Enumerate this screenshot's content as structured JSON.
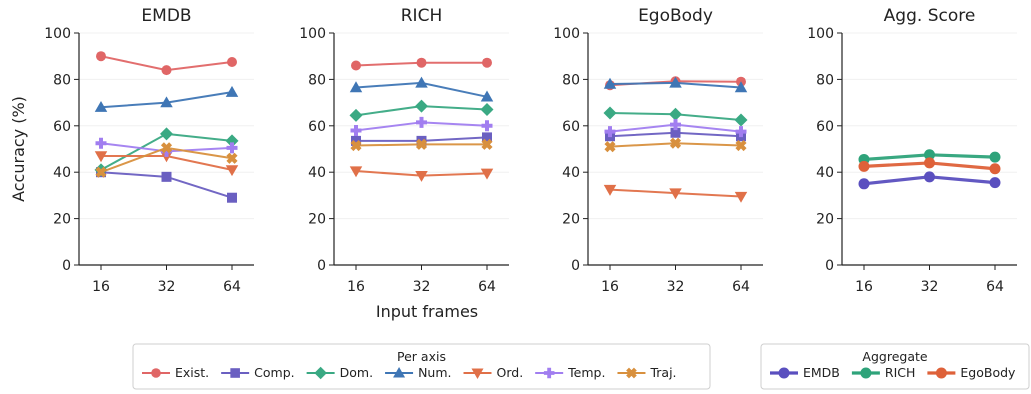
{
  "figure": {
    "ylabel": "Accuracy (%)",
    "xlabel": "Input frames"
  },
  "chart_data": [
    {
      "type": "line",
      "title": "EMDB",
      "x": [
        "16",
        "32",
        "64"
      ],
      "ylim": [
        0,
        100
      ],
      "yticks": [
        "0",
        "20",
        "40",
        "60",
        "80",
        "100"
      ],
      "grid": true,
      "series": [
        {
          "name": "Exist.",
          "values": [
            90,
            84,
            87.5
          ]
        },
        {
          "name": "Comp.",
          "values": [
            40,
            38,
            29
          ]
        },
        {
          "name": "Dom.",
          "values": [
            41,
            56.5,
            53.5
          ]
        },
        {
          "name": "Num.",
          "values": [
            68,
            70,
            74.5
          ]
        },
        {
          "name": "Ord.",
          "values": [
            47,
            47,
            41
          ]
        },
        {
          "name": "Temp.",
          "values": [
            52.5,
            49,
            50.5
          ]
        },
        {
          "name": "Traj.",
          "values": [
            40,
            50.5,
            46
          ]
        }
      ]
    },
    {
      "type": "line",
      "title": "RICH",
      "x": [
        "16",
        "32",
        "64"
      ],
      "ylim": [
        0,
        100
      ],
      "yticks": [
        "0",
        "20",
        "40",
        "60",
        "80",
        "100"
      ],
      "grid": true,
      "series": [
        {
          "name": "Exist.",
          "values": [
            86,
            87.2,
            87.2
          ]
        },
        {
          "name": "Comp.",
          "values": [
            53.5,
            53.5,
            55
          ]
        },
        {
          "name": "Dom.",
          "values": [
            64.5,
            68.5,
            67
          ]
        },
        {
          "name": "Num.",
          "values": [
            76.5,
            78.5,
            72.5
          ]
        },
        {
          "name": "Ord.",
          "values": [
            40.5,
            38.5,
            39.5
          ]
        },
        {
          "name": "Temp.",
          "values": [
            58,
            61.5,
            60
          ]
        },
        {
          "name": "Traj.",
          "values": [
            51.5,
            52,
            52
          ]
        }
      ]
    },
    {
      "type": "line",
      "title": "EgoBody",
      "x": [
        "16",
        "32",
        "64"
      ],
      "ylim": [
        0,
        100
      ],
      "yticks": [
        "0",
        "20",
        "40",
        "60",
        "80",
        "100"
      ],
      "grid": true,
      "series": [
        {
          "name": "Exist.",
          "values": [
            77.5,
            79.2,
            79
          ]
        },
        {
          "name": "Comp.",
          "values": [
            55.5,
            57,
            55.5
          ]
        },
        {
          "name": "Dom.",
          "values": [
            65.5,
            65,
            62.5
          ]
        },
        {
          "name": "Num.",
          "values": [
            78,
            78.5,
            76.5
          ]
        },
        {
          "name": "Ord.",
          "values": [
            32.5,
            31,
            29.5
          ]
        },
        {
          "name": "Temp.",
          "values": [
            57.5,
            60.5,
            57.5
          ]
        },
        {
          "name": "Traj.",
          "values": [
            51,
            52.5,
            51.5
          ]
        }
      ]
    },
    {
      "type": "line",
      "title": "Agg. Score",
      "x": [
        "16",
        "32",
        "64"
      ],
      "ylim": [
        0,
        100
      ],
      "yticks": [
        "0",
        "20",
        "40",
        "60",
        "80",
        "100"
      ],
      "grid": true,
      "series": [
        {
          "name": "EMDB",
          "values": [
            35,
            38,
            35.5
          ]
        },
        {
          "name": "RICH",
          "values": [
            45.5,
            47.5,
            46.5
          ]
        },
        {
          "name": "EgoBody",
          "values": [
            42.5,
            44,
            41.5
          ]
        }
      ]
    }
  ],
  "legends": {
    "per_axis": {
      "title": "Per axis",
      "entries": [
        {
          "label": "Exist.",
          "color": "#e06666",
          "marker": "circle"
        },
        {
          "label": "Comp.",
          "color": "#6a5fc1",
          "marker": "square"
        },
        {
          "label": "Dom.",
          "color": "#3aa983",
          "marker": "diamond"
        },
        {
          "label": "Num.",
          "color": "#3f76b5",
          "marker": "triangle-up"
        },
        {
          "label": "Ord.",
          "color": "#e07048",
          "marker": "triangle-down"
        },
        {
          "label": "Temp.",
          "color": "#a17ef0",
          "marker": "plus"
        },
        {
          "label": "Traj.",
          "color": "#d8903e",
          "marker": "x"
        }
      ]
    },
    "aggregate": {
      "title": "Aggregate",
      "entries": [
        {
          "label": "EMDB",
          "color": "#5a4fbf",
          "marker": "circle"
        },
        {
          "label": "RICH",
          "color": "#2ea37a",
          "marker": "circle"
        },
        {
          "label": "EgoBody",
          "color": "#de6139",
          "marker": "circle"
        }
      ]
    }
  }
}
